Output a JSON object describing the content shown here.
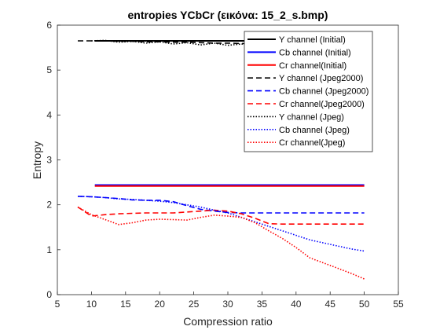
{
  "chart_data": {
    "type": "line",
    "title": "entropies YCbCr (εικόνα: 15_2_s.bmp)",
    "xlabel": "Compression ratio",
    "ylabel": "Entropy",
    "xlim": [
      5,
      55
    ],
    "ylim": [
      0,
      6
    ],
    "xticks": [
      "5",
      "10",
      "15",
      "20",
      "25",
      "30",
      "35",
      "40",
      "45",
      "50",
      "55"
    ],
    "yticks": [
      "0",
      "1",
      "2",
      "3",
      "4",
      "5",
      "6"
    ],
    "grid": false,
    "legend_position": "top-right",
    "series": [
      {
        "name": "Y channel (Initial)",
        "color": "#000000",
        "dash": "solid",
        "x": [
          10.5,
          50
        ],
        "y": [
          5.65,
          5.65
        ]
      },
      {
        "name": "Cb channel (Initial)",
        "color": "#0000ff",
        "dash": "solid",
        "x": [
          10.5,
          50
        ],
        "y": [
          2.44,
          2.44
        ]
      },
      {
        "name": "Cr channel(Initial)",
        "color": "#ff0000",
        "dash": "solid",
        "x": [
          10.5,
          50
        ],
        "y": [
          2.42,
          2.42
        ]
      },
      {
        "name": "Y channel (Jpeg2000)",
        "color": "#000000",
        "dash": "dashed",
        "x": [
          8,
          10,
          12,
          14,
          16,
          18,
          20,
          22,
          24,
          26,
          28,
          30,
          32,
          34
        ],
        "y": [
          5.65,
          5.65,
          5.65,
          5.64,
          5.64,
          5.63,
          5.63,
          5.62,
          5.62,
          5.61,
          5.6,
          5.6,
          5.59,
          5.59
        ]
      },
      {
        "name": "Cb channel (Jpeg2000)",
        "color": "#0000ff",
        "dash": "dashed",
        "x": [
          8,
          10,
          12,
          14,
          16,
          18,
          20,
          22,
          24,
          26,
          28,
          30,
          32,
          34,
          36,
          38,
          40,
          45,
          50
        ],
        "y": [
          2.19,
          2.18,
          2.16,
          2.14,
          2.11,
          2.1,
          2.1,
          2.07,
          1.98,
          1.9,
          1.86,
          1.83,
          1.82,
          1.82,
          1.82,
          1.82,
          1.82,
          1.82,
          1.82
        ]
      },
      {
        "name": "Cr channel(Jpeg2000)",
        "color": "#ff0000",
        "dash": "dashed",
        "x": [
          8,
          10,
          12,
          14,
          16,
          18,
          20,
          22,
          24,
          26,
          28,
          30,
          32,
          34,
          36,
          38,
          40,
          45,
          50
        ],
        "y": [
          1.95,
          1.75,
          1.78,
          1.8,
          1.81,
          1.82,
          1.82,
          1.82,
          1.84,
          1.86,
          1.88,
          1.86,
          1.8,
          1.7,
          1.58,
          1.57,
          1.57,
          1.57,
          1.57
        ]
      },
      {
        "name": "Y channel (Jpeg)",
        "color": "#000000",
        "dash": "dotted",
        "x": [
          10,
          12,
          14,
          16,
          18,
          20,
          22,
          24,
          26,
          28,
          30,
          32,
          34
        ],
        "y": [
          5.65,
          5.66,
          5.62,
          5.64,
          5.6,
          5.63,
          5.58,
          5.61,
          5.56,
          5.6,
          5.55,
          5.58,
          5.54
        ]
      },
      {
        "name": "Cb channel (Jpeg)",
        "color": "#0000ff",
        "dash": "dotted",
        "x": [
          8,
          10,
          12,
          14,
          16,
          18,
          20,
          22,
          24,
          26,
          28,
          30,
          32,
          34,
          36,
          38,
          40,
          42,
          45,
          48,
          50
        ],
        "y": [
          2.19,
          2.18,
          2.16,
          2.13,
          2.12,
          2.1,
          2.08,
          2.05,
          2.0,
          1.95,
          1.88,
          1.82,
          1.72,
          1.62,
          1.52,
          1.42,
          1.32,
          1.22,
          1.12,
          1.02,
          0.97
        ]
      },
      {
        "name": "Cr channel(Jpeg)",
        "color": "#ff0000",
        "dash": "dotted",
        "x": [
          8,
          10,
          12,
          14,
          16,
          18,
          20,
          22,
          24,
          26,
          28,
          30,
          32,
          34,
          36,
          38,
          40,
          42,
          45,
          48,
          50
        ],
        "y": [
          1.95,
          1.78,
          1.67,
          1.56,
          1.6,
          1.66,
          1.68,
          1.67,
          1.66,
          1.72,
          1.77,
          1.75,
          1.72,
          1.6,
          1.42,
          1.25,
          1.05,
          0.82,
          0.65,
          0.48,
          0.35
        ]
      }
    ]
  }
}
